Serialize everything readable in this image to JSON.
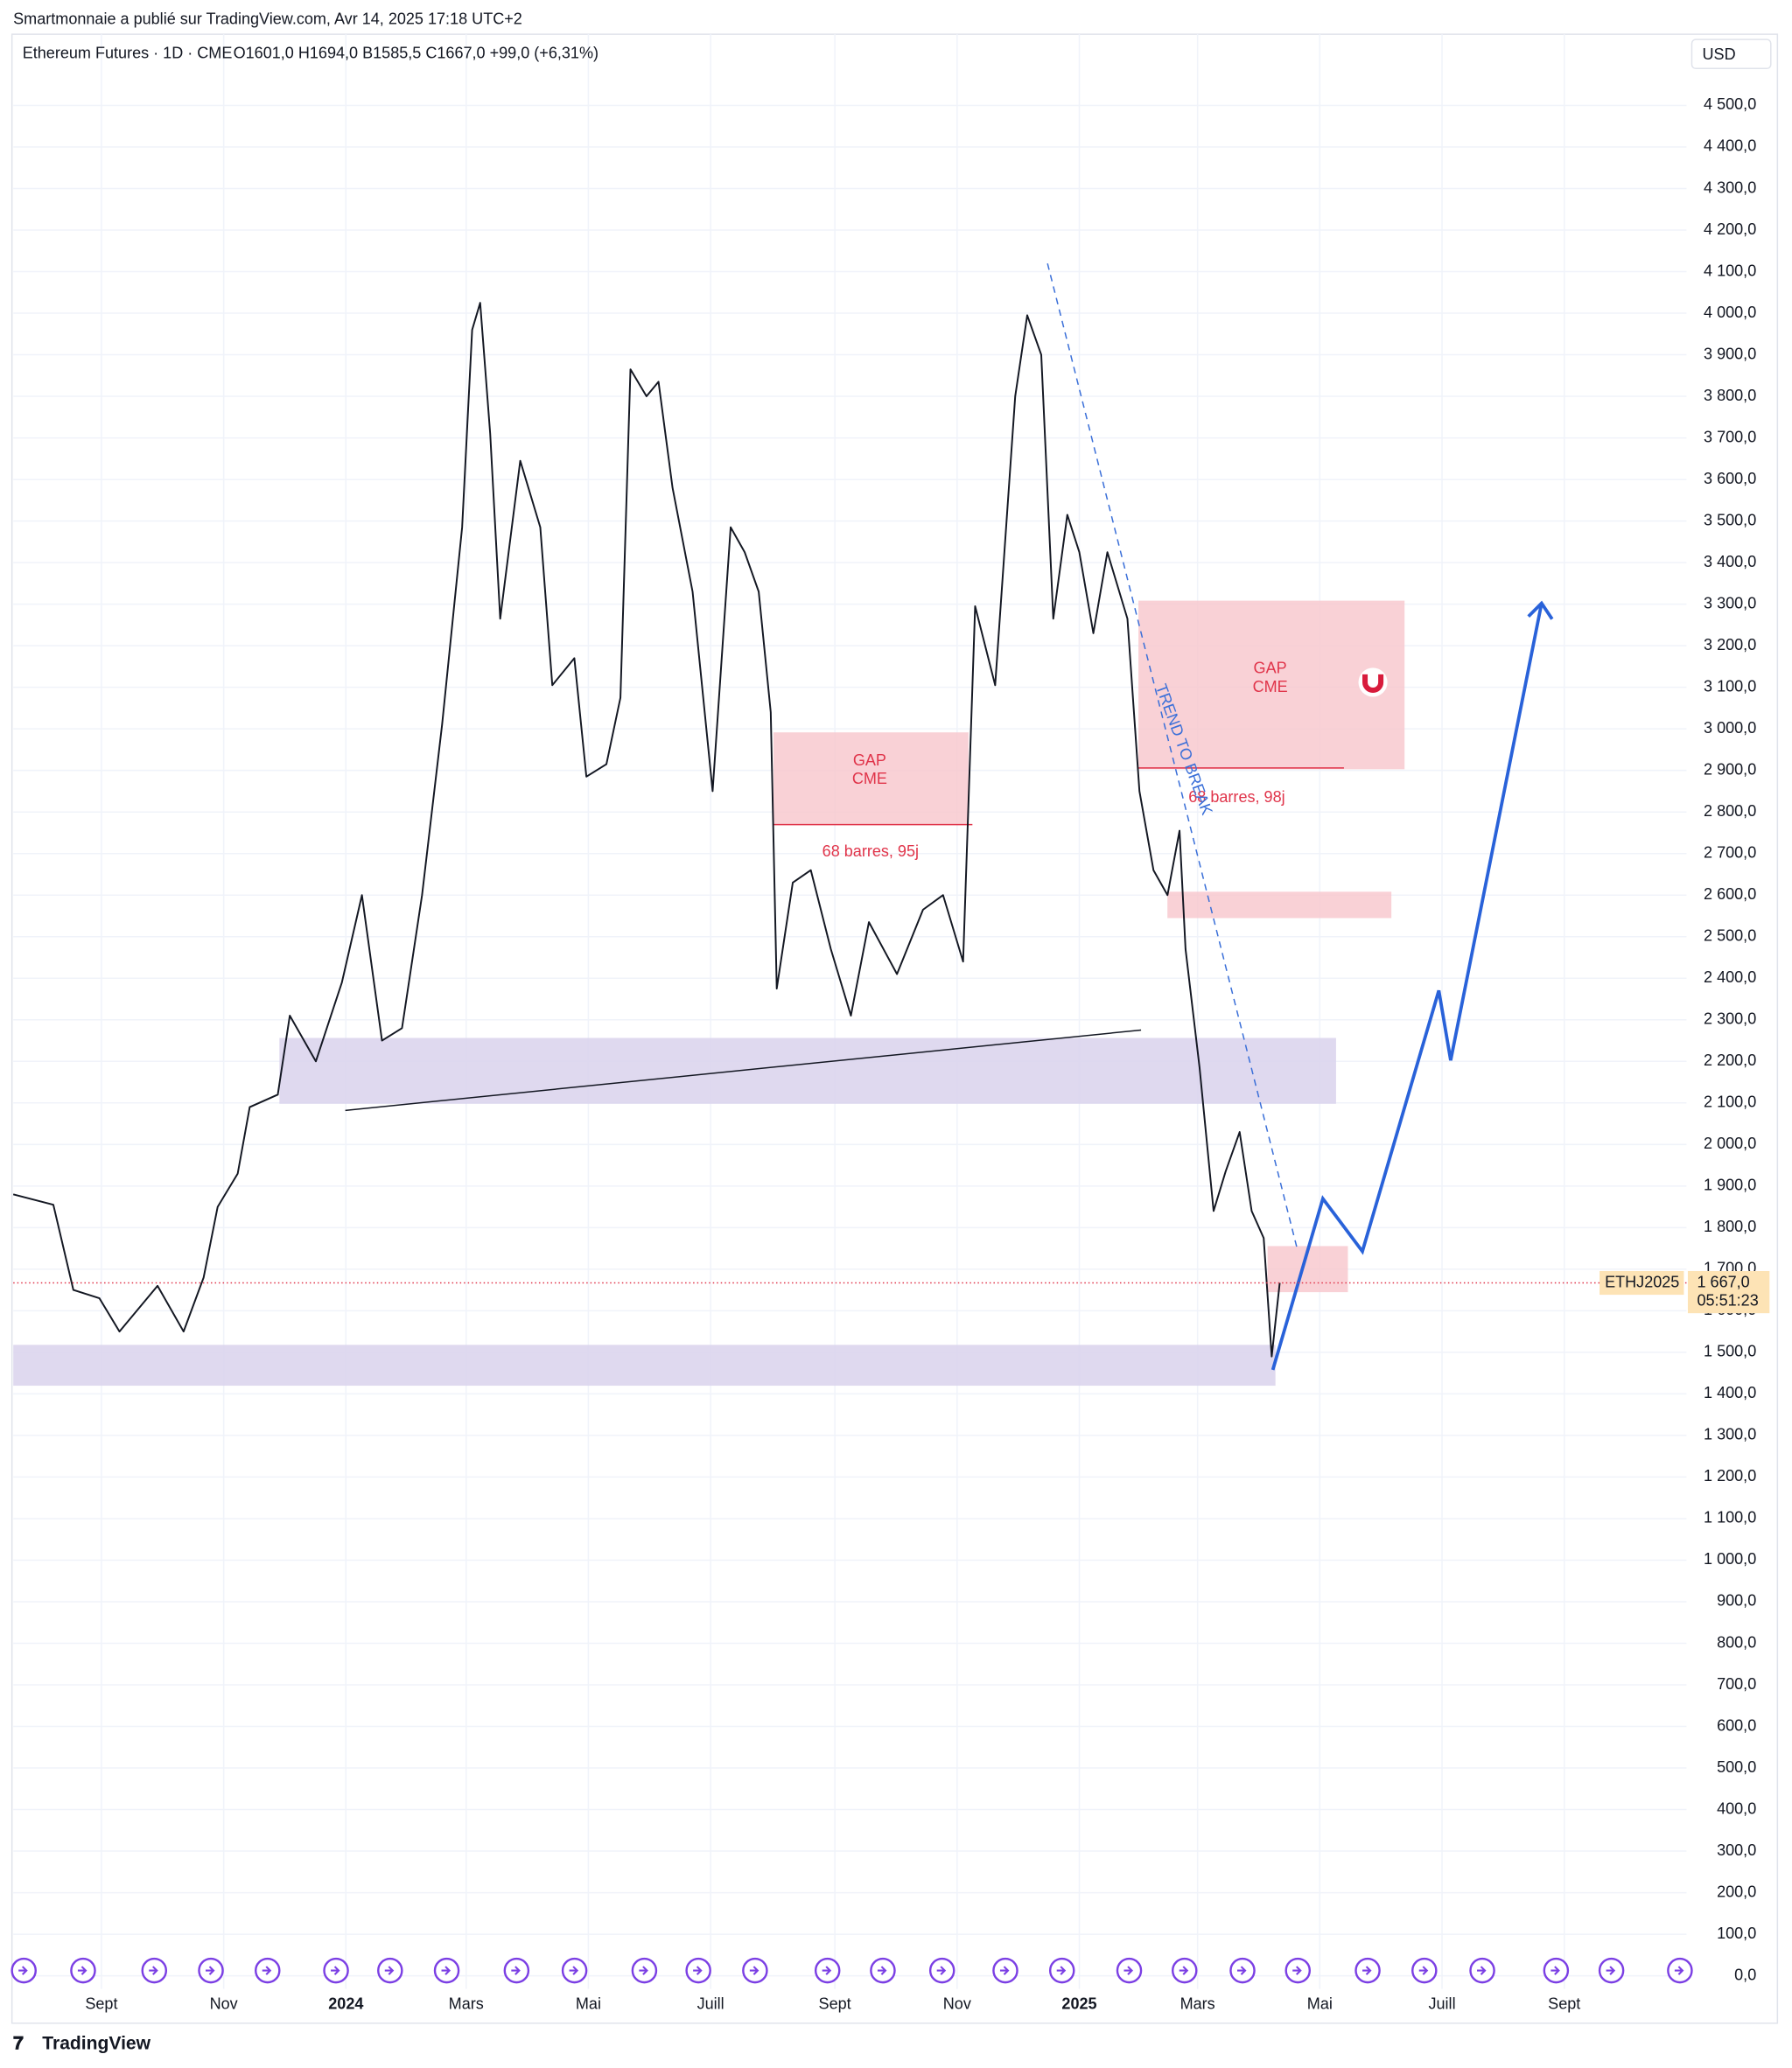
{
  "header": {
    "publisher": "Smartmonnaie a publié sur TradingView.com, Avr 14, 2025 17:18 UTC+2",
    "symbol": "Ethereum Futures · 1D · CME",
    "ohlc": "O1601,0  H1694,0  B1585,5  C1667,0  +99,0 (+6,31%)",
    "currency": "USD",
    "brand": "TradingView"
  },
  "annotations": {
    "gap1": [
      "GAP",
      "CME"
    ],
    "gap2": [
      "GAP",
      "CME"
    ],
    "range1": "68 barres, 95j",
    "range2": "68 barres, 98j",
    "trend": "TREND TO BREAK"
  },
  "price_tag": {
    "symbol": "ETHJ2025",
    "last": {
      "value": 1667,
      "label": "1 667,0"
    },
    "countdown": "05:51:23"
  },
  "chart_data": {
    "type": "line",
    "x": [
      -44,
      -24,
      -14,
      -1,
      9,
      28,
      41,
      51,
      58,
      68,
      74,
      88,
      94,
      107,
      120,
      130,
      140,
      150,
      160,
      170,
      180,
      185,
      189,
      194,
      199,
      209,
      219,
      225,
      236,
      242,
      252,
      259,
      264,
      272,
      278,
      285,
      295,
      305,
      314,
      321,
      328,
      334,
      337,
      345,
      354,
      364,
      374,
      383,
      397,
      410,
      420,
      430,
      436,
      446,
      456,
      462,
      469,
      475,
      482,
      488,
      495,
      502,
      512,
      518,
      525,
      532,
      538,
      541,
      548,
      555,
      561,
      568,
      574,
      580,
      584,
      588
    ],
    "series": [
      {
        "name": "Ethereum Futures",
        "color": "#131722",
        "values": [
          1880,
          1855,
          1650,
          1630,
          1550,
          1660,
          1550,
          1680,
          1850,
          1930,
          2090,
          2120,
          2310,
          2200,
          2390,
          2600,
          2250,
          2280,
          2600,
          3010,
          3485,
          3960,
          4025,
          3710,
          3265,
          3645,
          3485,
          3105,
          3170,
          2885,
          2915,
          3075,
          3865,
          3800,
          3835,
          3580,
          3330,
          2850,
          3485,
          3425,
          3330,
          3040,
          2375,
          2630,
          2660,
          2470,
          2310,
          2535,
          2410,
          2565,
          2600,
          2440,
          3295,
          3105,
          3800,
          3995,
          3900,
          3265,
          3515,
          3425,
          3230,
          3425,
          3265,
          2850,
          2660,
          2600,
          2755,
          2470,
          2185,
          1840,
          1935,
          2030,
          1840,
          1775,
          1490,
          1667
        ]
      }
    ],
    "xlim": [
      -44,
      791
    ],
    "xticks": [
      {
        "value": 0,
        "label": "Sept"
      },
      {
        "value": 61,
        "label": "Nov"
      },
      {
        "value": 122,
        "label": "2024"
      },
      {
        "value": 182,
        "label": "Mars"
      },
      {
        "value": 243,
        "label": "Mai"
      },
      {
        "value": 304,
        "label": "Juill"
      },
      {
        "value": 366,
        "label": "Sept"
      },
      {
        "value": 427,
        "label": "Nov"
      },
      {
        "value": 488,
        "label": "2025"
      },
      {
        "value": 547,
        "label": "Mars"
      },
      {
        "value": 608,
        "label": "Mai"
      },
      {
        "value": 669,
        "label": "Juill"
      },
      {
        "value": 730,
        "label": "Sept"
      }
    ],
    "ylim": [
      0,
      4500
    ],
    "yticks": [
      {
        "value": 0,
        "label": "0,0"
      },
      {
        "value": 100,
        "label": "100,0"
      },
      {
        "value": 200,
        "label": "200,0"
      },
      {
        "value": 300,
        "label": "300,0"
      },
      {
        "value": 400,
        "label": "400,0"
      },
      {
        "value": 500,
        "label": "500,0"
      },
      {
        "value": 600,
        "label": "600,0"
      },
      {
        "value": 700,
        "label": "700,0"
      },
      {
        "value": 800,
        "label": "800,0"
      },
      {
        "value": 900,
        "label": "900,0"
      },
      {
        "value": 1000,
        "label": "1 000,0"
      },
      {
        "value": 1100,
        "label": "1 100,0"
      },
      {
        "value": 1200,
        "label": "1 200,0"
      },
      {
        "value": 1300,
        "label": "1 300,0"
      },
      {
        "value": 1400,
        "label": "1 400,0"
      },
      {
        "value": 1500,
        "label": "1 500,0"
      },
      {
        "value": 1600,
        "label": "1 600,0"
      },
      {
        "value": 1700,
        "label": "1 700,0"
      },
      {
        "value": 1800,
        "label": "1 800,0"
      },
      {
        "value": 1900,
        "label": "1 900,0"
      },
      {
        "value": 2000,
        "label": "2 000,0"
      },
      {
        "value": 2100,
        "label": "2 100,0"
      },
      {
        "value": 2200,
        "label": "2 200,0"
      },
      {
        "value": 2300,
        "label": "2 300,0"
      },
      {
        "value": 2400,
        "label": "2 400,0"
      },
      {
        "value": 2500,
        "label": "2 500,0"
      },
      {
        "value": 2600,
        "label": "2 600,0"
      },
      {
        "value": 2700,
        "label": "2 700,0"
      },
      {
        "value": 2800,
        "label": "2 800,0"
      },
      {
        "value": 2900,
        "label": "2 900,0"
      },
      {
        "value": 3000,
        "label": "3 000,0"
      },
      {
        "value": 3100,
        "label": "3 100,0"
      },
      {
        "value": 3200,
        "label": "3 200,0"
      },
      {
        "value": 3300,
        "label": "3 300,0"
      },
      {
        "value": 3400,
        "label": "3 400,0"
      },
      {
        "value": 3500,
        "label": "3 500,0"
      },
      {
        "value": 3600,
        "label": "3 600,0"
      },
      {
        "value": 3700,
        "label": "3 700,0"
      },
      {
        "value": 3800,
        "label": "3 800,0"
      },
      {
        "value": 3900,
        "label": "3 900,0"
      },
      {
        "value": 4000,
        "label": "4 000,0"
      },
      {
        "value": 4100,
        "label": "4 100,0"
      },
      {
        "value": 4200,
        "label": "4 200,0"
      },
      {
        "value": 4300,
        "label": "4 300,0"
      },
      {
        "value": 4400,
        "label": "4 400,0"
      },
      {
        "value": 4500,
        "label": "4 500,0"
      }
    ],
    "grid": true
  }
}
